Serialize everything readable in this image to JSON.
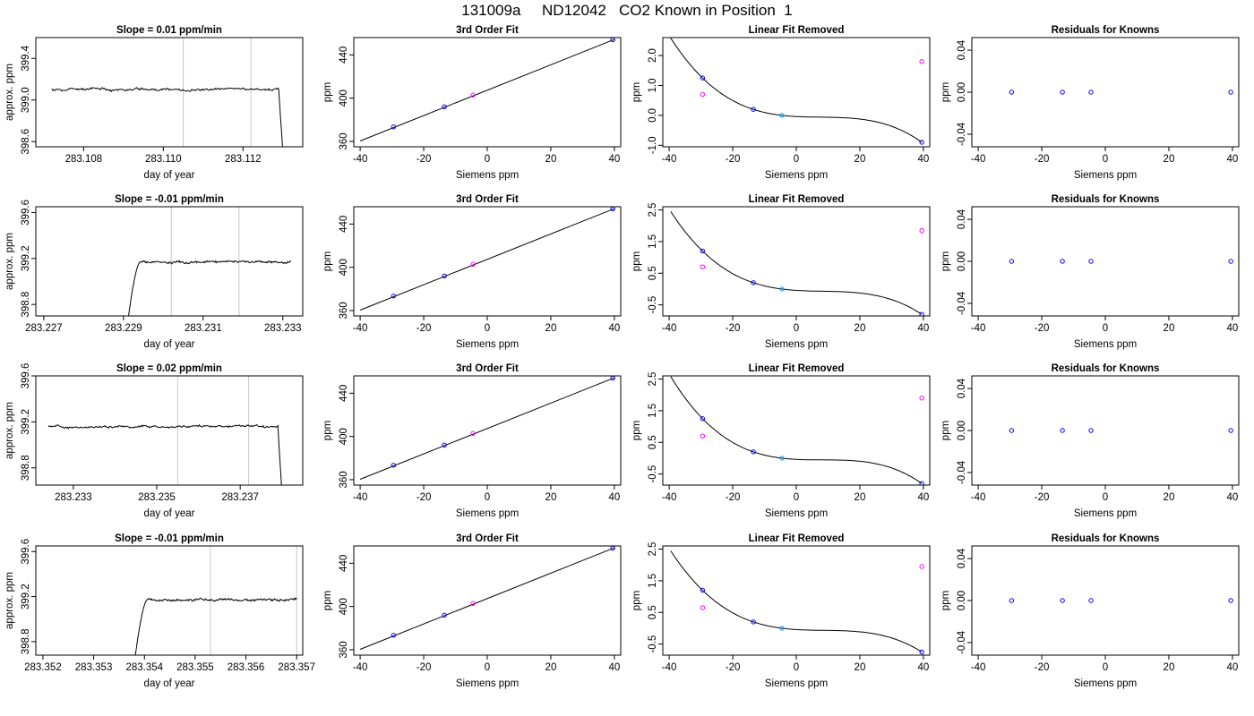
{
  "figure": {
    "title": "131009a     ND12042   CO2 Known in Position  1",
    "colors": {
      "trace": "#000000",
      "vline": "#c8c8c8",
      "known": "#0000ff",
      "extra": "#ff00ff",
      "mid": "#00a0ff",
      "marker": "#ff0000"
    }
  },
  "chart_data": [
    {
      "type": "line",
      "title": "Slope =  0.01  ppm/min",
      "xlabel": "day of year",
      "ylabel": "approx. ppm",
      "xlim": [
        283.1068,
        283.1135
      ],
      "ylim": [
        398.55,
        399.6
      ],
      "xticks": [
        283.108,
        283.11,
        283.112
      ],
      "xtick_labels": [
        "283.108",
        "283.110",
        "283.112"
      ],
      "yticks": [
        398.6,
        399.0,
        399.4
      ],
      "ytick_labels": [
        "398.6",
        "399.0",
        "399.4"
      ],
      "vlines": [
        283.1105,
        283.1122
      ],
      "trace": {
        "start": 283.1072,
        "end": 283.1131,
        "level": 399.1,
        "noise": 0.025,
        "drop": "end"
      }
    },
    {
      "type": "scatter",
      "title": "3rd Order Fit",
      "xlabel": "Siemens ppm",
      "ylabel": "ppm",
      "xlim": [
        -42,
        42
      ],
      "ylim": [
        355,
        456
      ],
      "xticks": [
        -40,
        -20,
        0,
        20,
        40
      ],
      "xtick_labels": [
        "-40",
        "-20",
        "0",
        "20",
        "40"
      ],
      "yticks": [
        360,
        400,
        440
      ],
      "ytick_labels": [
        "360",
        "400",
        "440"
      ],
      "line": [
        [
          -40,
          360.4
        ],
        [
          40,
          454.3
        ]
      ],
      "points": [
        {
          "x": -29.5,
          "y": 373.4,
          "color": "known"
        },
        {
          "x": -13.5,
          "y": 392.0,
          "color": "known"
        },
        {
          "x": -4.5,
          "y": 402.8,
          "color": "extra"
        },
        {
          "x": 39.5,
          "y": 454.0,
          "color": "known"
        }
      ]
    },
    {
      "type": "line",
      "title": "Linear Fit Removed",
      "xlabel": "Siemens ppm",
      "ylabel": "ppm",
      "xlim": [
        -42,
        42
      ],
      "ylim": [
        -1.05,
        2.6
      ],
      "xticks": [
        -40,
        -20,
        0,
        20,
        40
      ],
      "xtick_labels": [
        "-40",
        "-20",
        "0",
        "20",
        "40"
      ],
      "yticks": [
        -1.0,
        0.0,
        1.0,
        2.0
      ],
      "ytick_labels": [
        "-1.0",
        "0.0",
        "1.0",
        "2.0"
      ],
      "curve": {
        "x1": -29.5,
        "y1": 1.25,
        "x2": -13.5,
        "y2": 0.2,
        "x3": -4.5,
        "y3": 0.0,
        "x4": 39.5,
        "y4": -0.9,
        "from": -39.5,
        "to": 39.5
      },
      "points": [
        {
          "x": -29.5,
          "y": 1.25,
          "color": "known"
        },
        {
          "x": -29.5,
          "y": 0.7,
          "color": "extra"
        },
        {
          "x": -13.5,
          "y": 0.2,
          "color": "known"
        },
        {
          "x": -4.5,
          "y": 0.0,
          "color": "mid"
        },
        {
          "x": 39.5,
          "y": 1.8,
          "color": "extra"
        },
        {
          "x": 39.5,
          "y": -0.9,
          "color": "known"
        }
      ]
    },
    {
      "type": "scatter",
      "title": "Residuals for Knowns",
      "xlabel": "Siemens ppm",
      "ylabel": "ppm",
      "xlim": [
        -42,
        42
      ],
      "ylim": [
        -0.052,
        0.052
      ],
      "xticks": [
        -40,
        -20,
        0,
        20,
        40
      ],
      "xtick_labels": [
        "-40",
        "-20",
        "0",
        "20",
        "40"
      ],
      "yticks": [
        -0.04,
        0.0,
        0.04
      ],
      "ytick_labels": [
        "-0.04",
        "0.00",
        "0.04"
      ],
      "points": [
        {
          "x": -29.5,
          "y": 0.0,
          "color": "known"
        },
        {
          "x": -13.5,
          "y": 0.0,
          "color": "known"
        },
        {
          "x": -4.5,
          "y": 0.0,
          "color": "known"
        },
        {
          "x": 39.5,
          "y": 0.0,
          "color": "known"
        }
      ]
    },
    {
      "type": "line",
      "title": "Slope =  -0.01  ppm/min",
      "xlabel": "day of year",
      "ylabel": "approx. ppm",
      "xlim": [
        283.2268,
        283.2335
      ],
      "ylim": [
        398.7,
        399.65
      ],
      "xticks": [
        283.227,
        283.229,
        283.231,
        283.233
      ],
      "xtick_labels": [
        "283.227",
        "283.229",
        "283.231",
        "283.233"
      ],
      "yticks": [
        398.8,
        399.2,
        399.6
      ],
      "ytick_labels": [
        "398.8",
        "399.2",
        "399.6"
      ],
      "vlines": [
        283.2302,
        283.2319
      ],
      "trace": {
        "start": 283.2289,
        "end": 283.2332,
        "level": 399.17,
        "noise": 0.02,
        "drop": "start"
      }
    },
    {
      "type": "scatter",
      "title": "3rd Order Fit",
      "xlabel": "Siemens ppm",
      "ylabel": "ppm",
      "xlim": [
        -42,
        42
      ],
      "ylim": [
        355,
        456
      ],
      "xticks": [
        -40,
        -20,
        0,
        20,
        40
      ],
      "xtick_labels": [
        "-40",
        "-20",
        "0",
        "20",
        "40"
      ],
      "yticks": [
        360,
        400,
        440
      ],
      "ytick_labels": [
        "360",
        "400",
        "440"
      ],
      "line": [
        [
          -40,
          360.4
        ],
        [
          40,
          454.3
        ]
      ],
      "points": [
        {
          "x": -29.5,
          "y": 373.4,
          "color": "known"
        },
        {
          "x": -13.5,
          "y": 392.0,
          "color": "known"
        },
        {
          "x": -4.5,
          "y": 402.8,
          "color": "extra"
        },
        {
          "x": 39.5,
          "y": 454.0,
          "color": "known"
        }
      ]
    },
    {
      "type": "line",
      "title": "Linear Fit Removed",
      "xlabel": "Siemens ppm",
      "ylabel": "ppm",
      "xlim": [
        -42,
        42
      ],
      "ylim": [
        -0.85,
        2.6
      ],
      "xticks": [
        -40,
        -20,
        0,
        20,
        40
      ],
      "xtick_labels": [
        "-40",
        "-20",
        "0",
        "20",
        "40"
      ],
      "yticks": [
        -0.5,
        0.5,
        1.5,
        2.5
      ],
      "ytick_labels": [
        "-0.5",
        "0.5",
        "1.5",
        "2.5"
      ],
      "curve": {
        "x1": -29.5,
        "y1": 1.2,
        "x2": -13.5,
        "y2": 0.2,
        "x3": -4.5,
        "y3": 0.0,
        "x4": 39.5,
        "y4": -0.8,
        "from": -39.5,
        "to": 39.5
      },
      "points": [
        {
          "x": -29.5,
          "y": 1.2,
          "color": "known"
        },
        {
          "x": -29.5,
          "y": 0.7,
          "color": "extra"
        },
        {
          "x": -13.5,
          "y": 0.2,
          "color": "known"
        },
        {
          "x": -4.5,
          "y": 0.0,
          "color": "mid"
        },
        {
          "x": 39.5,
          "y": 1.85,
          "color": "extra"
        },
        {
          "x": 39.5,
          "y": -0.8,
          "color": "known"
        }
      ]
    },
    {
      "type": "scatter",
      "title": "Residuals for Knowns",
      "xlabel": "Siemens ppm",
      "ylabel": "ppm",
      "xlim": [
        -42,
        42
      ],
      "ylim": [
        -0.052,
        0.052
      ],
      "xticks": [
        -40,
        -20,
        0,
        20,
        40
      ],
      "xtick_labels": [
        "-40",
        "-20",
        "0",
        "20",
        "40"
      ],
      "yticks": [
        -0.04,
        0.0,
        0.04
      ],
      "ytick_labels": [
        "-0.04",
        "0.00",
        "0.04"
      ],
      "points": [
        {
          "x": -29.5,
          "y": 0.0,
          "color": "known"
        },
        {
          "x": -13.5,
          "y": 0.0,
          "color": "known"
        },
        {
          "x": -4.5,
          "y": 0.0,
          "color": "known"
        },
        {
          "x": 39.5,
          "y": 0.0,
          "color": "known"
        }
      ]
    },
    {
      "type": "line",
      "title": "Slope =  0.02  ppm/min",
      "xlabel": "day of year",
      "ylabel": "approx. ppm",
      "xlim": [
        283.2321,
        283.2385
      ],
      "ylim": [
        398.65,
        399.6
      ],
      "xticks": [
        283.233,
        283.235,
        283.237
      ],
      "xtick_labels": [
        "283.233",
        "283.235",
        "283.237"
      ],
      "yticks": [
        398.8,
        399.2,
        399.6
      ],
      "ytick_labels": [
        "398.8",
        "399.2",
        "399.6"
      ],
      "vlines": [
        283.2355,
        283.2372
      ],
      "trace": {
        "start": 283.2324,
        "end": 283.2381,
        "level": 399.16,
        "noise": 0.02,
        "drop": "end"
      }
    },
    {
      "type": "scatter",
      "title": "3rd Order Fit",
      "xlabel": "Siemens ppm",
      "ylabel": "ppm",
      "xlim": [
        -42,
        42
      ],
      "ylim": [
        355,
        456
      ],
      "xticks": [
        -40,
        -20,
        0,
        20,
        40
      ],
      "xtick_labels": [
        "-40",
        "-20",
        "0",
        "20",
        "40"
      ],
      "yticks": [
        360,
        400,
        440
      ],
      "ytick_labels": [
        "360",
        "400",
        "440"
      ],
      "line": [
        [
          -40,
          360.4
        ],
        [
          40,
          454.3
        ]
      ],
      "points": [
        {
          "x": -29.5,
          "y": 373.4,
          "color": "known"
        },
        {
          "x": -13.5,
          "y": 392.0,
          "color": "known"
        },
        {
          "x": -4.5,
          "y": 402.8,
          "color": "extra"
        },
        {
          "x": 39.5,
          "y": 454.0,
          "color": "known"
        }
      ]
    },
    {
      "type": "line",
      "title": "Linear Fit Removed",
      "xlabel": "Siemens ppm",
      "ylabel": "ppm",
      "xlim": [
        -42,
        42
      ],
      "ylim": [
        -0.85,
        2.6
      ],
      "xticks": [
        -40,
        -20,
        0,
        20,
        40
      ],
      "xtick_labels": [
        "-40",
        "-20",
        "0",
        "20",
        "40"
      ],
      "yticks": [
        -0.5,
        0.5,
        1.5,
        2.5
      ],
      "ytick_labels": [
        "-0.5",
        "0.5",
        "1.5",
        "2.5"
      ],
      "curve": {
        "x1": -29.5,
        "y1": 1.25,
        "x2": -13.5,
        "y2": 0.2,
        "x3": -4.5,
        "y3": 0.0,
        "x4": 39.5,
        "y4": -0.8,
        "from": -39.5,
        "to": 39.5
      },
      "points": [
        {
          "x": -29.5,
          "y": 1.25,
          "color": "known"
        },
        {
          "x": -29.5,
          "y": 0.7,
          "color": "extra"
        },
        {
          "x": -13.5,
          "y": 0.2,
          "color": "known"
        },
        {
          "x": -4.5,
          "y": 0.0,
          "color": "mid"
        },
        {
          "x": 39.5,
          "y": 1.9,
          "color": "extra"
        },
        {
          "x": 39.5,
          "y": -0.8,
          "color": "known"
        }
      ]
    },
    {
      "type": "scatter",
      "title": "Residuals for Knowns",
      "xlabel": "Siemens ppm",
      "ylabel": "ppm",
      "xlim": [
        -42,
        42
      ],
      "ylim": [
        -0.052,
        0.052
      ],
      "xticks": [
        -40,
        -20,
        0,
        20,
        40
      ],
      "xtick_labels": [
        "-40",
        "-20",
        "0",
        "20",
        "40"
      ],
      "yticks": [
        -0.04,
        0.0,
        0.04
      ],
      "ytick_labels": [
        "-0.04",
        "0.00",
        "0.04"
      ],
      "points": [
        {
          "x": -29.5,
          "y": 0.0,
          "color": "known"
        },
        {
          "x": -13.5,
          "y": 0.0,
          "color": "known"
        },
        {
          "x": -4.5,
          "y": 0.0,
          "color": "known"
        },
        {
          "x": 39.5,
          "y": 0.0,
          "color": "known"
        }
      ]
    },
    {
      "type": "line",
      "title": "Slope =  -0.01  ppm/min",
      "xlabel": "day of year",
      "ylabel": "approx. ppm",
      "xlim": [
        283.35186,
        283.35712
      ],
      "ylim": [
        398.68,
        399.65
      ],
      "xticks": [
        283.352,
        283.353,
        283.354,
        283.355,
        283.356,
        283.357
      ],
      "xtick_labels": [
        "283.352",
        "283.353",
        "283.354",
        "283.355",
        "283.356",
        "283.357"
      ],
      "yticks": [
        398.8,
        399.2,
        399.6
      ],
      "ytick_labels": [
        "398.8",
        "399.2",
        "399.6"
      ],
      "vlines": [
        283.3553,
        283.357
      ],
      "trace": {
        "start": 283.35365,
        "end": 283.357,
        "level": 399.17,
        "noise": 0.02,
        "drop": "start"
      }
    },
    {
      "type": "scatter",
      "title": "3rd Order Fit",
      "xlabel": "Siemens ppm",
      "ylabel": "ppm",
      "xlim": [
        -42,
        42
      ],
      "ylim": [
        355,
        456
      ],
      "xticks": [
        -40,
        -20,
        0,
        20,
        40
      ],
      "xtick_labels": [
        "-40",
        "-20",
        "0",
        "20",
        "40"
      ],
      "yticks": [
        360,
        400,
        440
      ],
      "ytick_labels": [
        "360",
        "400",
        "440"
      ],
      "line": [
        [
          -40,
          360.4
        ],
        [
          40,
          454.3
        ]
      ],
      "points": [
        {
          "x": -29.5,
          "y": 373.4,
          "color": "known"
        },
        {
          "x": -13.5,
          "y": 392.0,
          "color": "known"
        },
        {
          "x": -4.5,
          "y": 402.8,
          "color": "extra"
        },
        {
          "x": 39.5,
          "y": 454.0,
          "color": "known"
        }
      ]
    },
    {
      "type": "line",
      "title": "Linear Fit Removed",
      "xlabel": "Siemens ppm",
      "ylabel": "ppm",
      "xlim": [
        -42,
        42
      ],
      "ylim": [
        -0.85,
        2.6
      ],
      "xticks": [
        -40,
        -20,
        0,
        20,
        40
      ],
      "xtick_labels": [
        "-40",
        "-20",
        "0",
        "20",
        "40"
      ],
      "yticks": [
        -0.5,
        0.5,
        1.5,
        2.5
      ],
      "ytick_labels": [
        "-0.5",
        "0.5",
        "1.5",
        "2.5"
      ],
      "curve": {
        "x1": -29.5,
        "y1": 1.2,
        "x2": -13.5,
        "y2": 0.2,
        "x3": -4.5,
        "y3": 0.0,
        "x4": 39.5,
        "y4": -0.75,
        "from": -39.5,
        "to": 39.5
      },
      "points": [
        {
          "x": -29.5,
          "y": 1.2,
          "color": "known"
        },
        {
          "x": -29.5,
          "y": 0.65,
          "color": "extra"
        },
        {
          "x": -13.5,
          "y": 0.2,
          "color": "known"
        },
        {
          "x": -4.5,
          "y": 0.0,
          "color": "mid"
        },
        {
          "x": 39.5,
          "y": 1.95,
          "color": "extra"
        },
        {
          "x": 39.5,
          "y": -0.75,
          "color": "known"
        }
      ]
    },
    {
      "type": "scatter",
      "title": "Residuals for Knowns",
      "xlabel": "Siemens ppm",
      "ylabel": "ppm",
      "xlim": [
        -42,
        42
      ],
      "ylim": [
        -0.052,
        0.052
      ],
      "xticks": [
        -40,
        -20,
        0,
        20,
        40
      ],
      "xtick_labels": [
        "-40",
        "-20",
        "0",
        "20",
        "40"
      ],
      "yticks": [
        -0.04,
        0.0,
        0.04
      ],
      "ytick_labels": [
        "-0.04",
        "0.00",
        "0.04"
      ],
      "points": [
        {
          "x": -29.5,
          "y": 0.0,
          "color": "known"
        },
        {
          "x": -13.5,
          "y": 0.0,
          "color": "known"
        },
        {
          "x": -4.5,
          "y": 0.0,
          "color": "known"
        },
        {
          "x": 39.5,
          "y": 0.0,
          "color": "known"
        }
      ]
    }
  ]
}
